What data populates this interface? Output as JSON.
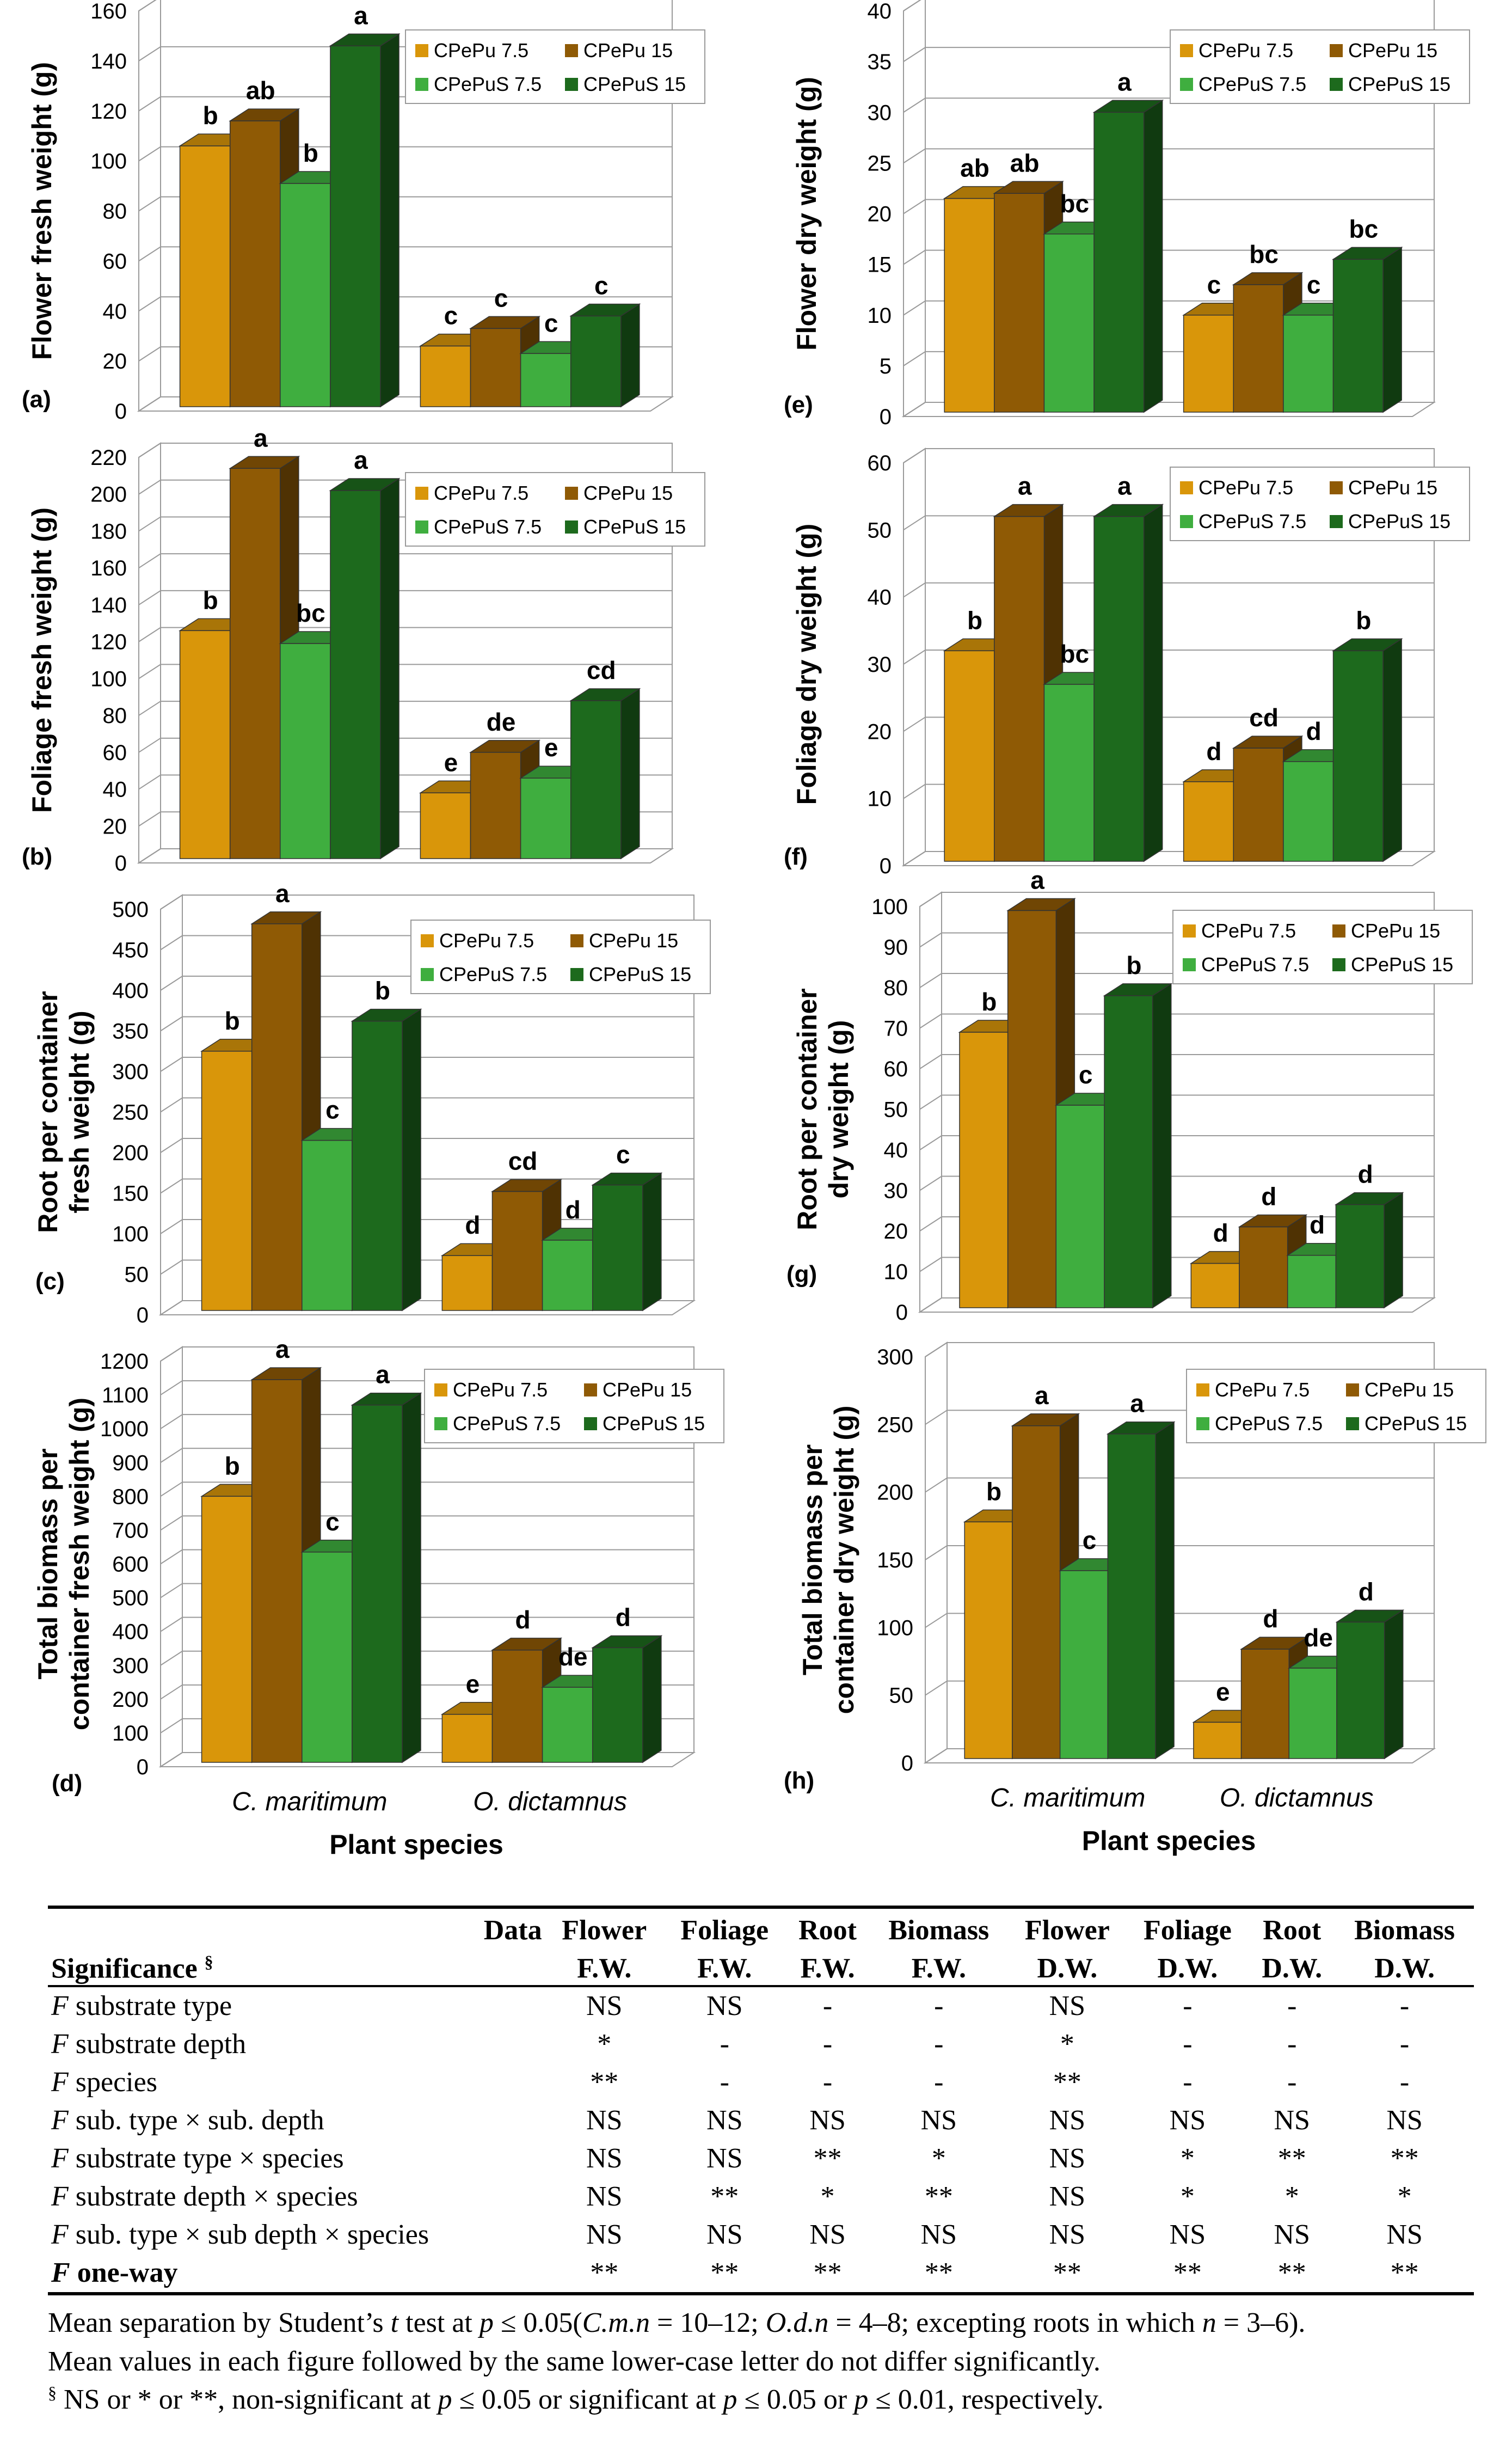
{
  "legend_colors": {
    "CPePu 7.5": "#d9960a",
    "CPePu 15": "#8f5a05",
    "CPePuS 7.5": "#3fae3f",
    "CPePuS 15": "#1d6a1d"
  },
  "charts": {
    "common": {
      "series": [
        "CPePu 7.5",
        "CPePu 15",
        "CPePuS 7.5",
        "CPePuS 15"
      ],
      "categories": [
        "C. maritimum",
        "O. dictamnus"
      ],
      "xlabel": "Plant species"
    }
  },
  "chart_data": [
    {
      "id": "a",
      "type": "bar",
      "panel": "(a)",
      "ylabel": "Flower fresh weight (g)",
      "ylim": [
        0,
        160
      ],
      "ystep": 20,
      "categories": [
        "C. maritimum",
        "O. dictamnus"
      ],
      "series": [
        {
          "name": "CPePu 7.5",
          "values": [
            106,
            26
          ],
          "labels": [
            "b",
            "c"
          ]
        },
        {
          "name": "CPePu 15",
          "values": [
            116,
            33
          ],
          "labels": [
            "ab",
            "c"
          ]
        },
        {
          "name": "CPePuS 7.5",
          "values": [
            91,
            23
          ],
          "labels": [
            "b",
            "c"
          ]
        },
        {
          "name": "CPePuS 15",
          "values": [
            146,
            38
          ],
          "labels": [
            "a",
            "c"
          ]
        }
      ]
    },
    {
      "id": "e",
      "type": "bar",
      "panel": "(e)",
      "ylabel": "Flower dry weight (g)",
      "ylim": [
        0,
        40
      ],
      "ystep": 5,
      "categories": [
        "C. maritimum",
        "O. dictamnus"
      ],
      "series": [
        {
          "name": "CPePu 7.5",
          "values": [
            21.5,
            10
          ],
          "labels": [
            "ab",
            "c"
          ]
        },
        {
          "name": "CPePu 15",
          "values": [
            22,
            13
          ],
          "labels": [
            "ab",
            "bc"
          ]
        },
        {
          "name": "CPePuS 7.5",
          "values": [
            18,
            10
          ],
          "labels": [
            "bc",
            "c"
          ]
        },
        {
          "name": "CPePuS 15",
          "values": [
            30,
            15.5
          ],
          "labels": [
            "a",
            "bc"
          ]
        }
      ]
    },
    {
      "id": "b",
      "type": "bar",
      "panel": "(b)",
      "ylabel": "Foliage fresh weight (g)",
      "ylim": [
        0,
        220
      ],
      "ystep": 20,
      "categories": [
        "C. maritimum",
        "O. dictamnus"
      ],
      "series": [
        {
          "name": "CPePu 7.5",
          "values": [
            126,
            38
          ],
          "labels": [
            "b",
            "e"
          ]
        },
        {
          "name": "CPePu 15",
          "values": [
            214,
            60
          ],
          "labels": [
            "a",
            "de"
          ]
        },
        {
          "name": "CPePuS 7.5",
          "values": [
            119,
            46
          ],
          "labels": [
            "bc",
            "e"
          ]
        },
        {
          "name": "CPePuS 15",
          "values": [
            202,
            88
          ],
          "labels": [
            "a",
            "cd"
          ]
        }
      ]
    },
    {
      "id": "f",
      "type": "bar",
      "panel": "(f)",
      "ylabel": "Foliage dry weight (g)",
      "ylim": [
        0,
        60
      ],
      "ystep": 10,
      "categories": [
        "C. maritimum",
        "O. dictamnus"
      ],
      "series": [
        {
          "name": "CPePu 7.5",
          "values": [
            32,
            12.5
          ],
          "labels": [
            "b",
            "d"
          ]
        },
        {
          "name": "CPePu 15",
          "values": [
            52,
            17.5
          ],
          "labels": [
            "a",
            "cd"
          ]
        },
        {
          "name": "CPePuS 7.5",
          "values": [
            27,
            15.5
          ],
          "labels": [
            "bc",
            "d"
          ]
        },
        {
          "name": "CPePuS 15",
          "values": [
            52,
            32
          ],
          "labels": [
            "a",
            "b"
          ]
        }
      ]
    },
    {
      "id": "c",
      "type": "bar",
      "panel": "(c)",
      "ylabel": "Root per container fresh weight (g)",
      "ylim": [
        0,
        500
      ],
      "ystep": 50,
      "categories": [
        "C. maritimum",
        "O. dictamnus"
      ],
      "series": [
        {
          "name": "CPePu 7.5",
          "values": [
            325,
            73
          ],
          "labels": [
            "b",
            "d"
          ]
        },
        {
          "name": "CPePu 15",
          "values": [
            482,
            152
          ],
          "labels": [
            "a",
            "cd"
          ]
        },
        {
          "name": "CPePuS 7.5",
          "values": [
            215,
            92
          ],
          "labels": [
            "c",
            "d"
          ]
        },
        {
          "name": "CPePuS 15",
          "values": [
            362,
            160
          ],
          "labels": [
            "b",
            "c"
          ]
        }
      ]
    },
    {
      "id": "g",
      "type": "bar",
      "panel": "(g)",
      "ylabel": "Root per container dry weight (g)",
      "ylim": [
        0,
        100
      ],
      "ystep": 10,
      "categories": [
        "C. maritimum",
        "O. dictamnus"
      ],
      "series": [
        {
          "name": "CPePu 7.5",
          "values": [
            69,
            12
          ],
          "labels": [
            "b",
            "d"
          ]
        },
        {
          "name": "CPePu 15",
          "values": [
            99,
            21
          ],
          "labels": [
            "a",
            "d"
          ]
        },
        {
          "name": "CPePuS 7.5",
          "values": [
            51,
            14
          ],
          "labels": [
            "c",
            "d"
          ]
        },
        {
          "name": "CPePuS 15",
          "values": [
            78,
            26.5
          ],
          "labels": [
            "b",
            "d"
          ]
        }
      ]
    },
    {
      "id": "d",
      "type": "bar",
      "panel": "(d)",
      "ylabel": "Total biomass per container fresh weight (g)",
      "ylim": [
        0,
        1200
      ],
      "ystep": 100,
      "categories": [
        "C. maritimum",
        "O. dictamnus"
      ],
      "series": [
        {
          "name": "CPePu 7.5",
          "values": [
            800,
            155
          ],
          "labels": [
            "b",
            "e"
          ]
        },
        {
          "name": "CPePu 15",
          "values": [
            1145,
            345
          ],
          "labels": [
            "a",
            "d"
          ]
        },
        {
          "name": "CPePuS 7.5",
          "values": [
            635,
            235
          ],
          "labels": [
            "c",
            "de"
          ]
        },
        {
          "name": "CPePuS 15",
          "values": [
            1070,
            352
          ],
          "labels": [
            "a",
            "d"
          ]
        }
      ]
    },
    {
      "id": "h",
      "type": "bar",
      "panel": "(h)",
      "ylabel": "Total biomass per container dry weight (g)",
      "ylim": [
        0,
        300
      ],
      "ystep": 50,
      "categories": [
        "C. maritimum",
        "O. dictamnus"
      ],
      "series": [
        {
          "name": "CPePu 7.5",
          "values": [
            178,
            30
          ],
          "labels": [
            "b",
            "e"
          ]
        },
        {
          "name": "CPePu 15",
          "values": [
            249,
            84
          ],
          "labels": [
            "a",
            "d"
          ]
        },
        {
          "name": "CPePuS 7.5",
          "values": [
            142,
            70
          ],
          "labels": [
            "c",
            "de"
          ]
        },
        {
          "name": "CPePuS 15",
          "values": [
            243,
            104
          ],
          "labels": [
            "a",
            "d"
          ]
        }
      ]
    }
  ],
  "table": {
    "header_data": "Data",
    "header_sig": "Significance",
    "header_sig_sup": "§",
    "columns": [
      [
        "Flower",
        "F.W."
      ],
      [
        "Foliage",
        "F.W."
      ],
      [
        "Root",
        "F.W."
      ],
      [
        "Biomass",
        "F.W."
      ],
      [
        "Flower",
        "D.W."
      ],
      [
        "Foliage",
        "D.W."
      ],
      [
        "Root",
        "D.W."
      ],
      [
        "Biomass",
        "D.W."
      ]
    ],
    "rows": [
      {
        "f": "F",
        "label": " substrate type",
        "bold": false,
        "cells": [
          "NS",
          "NS",
          "-",
          "-",
          "NS",
          "-",
          "-",
          "-"
        ]
      },
      {
        "f": "F",
        "label": " substrate depth",
        "bold": false,
        "cells": [
          "*",
          "-",
          "-",
          "-",
          "*",
          "-",
          "-",
          "-"
        ]
      },
      {
        "f": "F",
        "label": " species",
        "bold": false,
        "cells": [
          "**",
          "-",
          "-",
          "-",
          "**",
          "-",
          "-",
          "-"
        ]
      },
      {
        "f": "F",
        "label": " sub. type × sub. depth",
        "bold": false,
        "cells": [
          "NS",
          "NS",
          "NS",
          "NS",
          "NS",
          "NS",
          "NS",
          "NS"
        ]
      },
      {
        "f": "F",
        "label": " substrate type × species",
        "bold": false,
        "cells": [
          "NS",
          "NS",
          "**",
          "*",
          "NS",
          "*",
          "**",
          "**"
        ]
      },
      {
        "f": "F",
        "label": " substrate depth × species",
        "bold": false,
        "cells": [
          "NS",
          "**",
          "*",
          "**",
          "NS",
          "*",
          "*",
          "*"
        ]
      },
      {
        "f": "F",
        "label": " sub. type × sub depth × species",
        "bold": false,
        "cells": [
          "NS",
          "NS",
          "NS",
          "NS",
          "NS",
          "NS",
          "NS",
          "NS"
        ]
      },
      {
        "f": "F",
        "label": " one-way",
        "bold": true,
        "cells": [
          "**",
          "**",
          "**",
          "**",
          "**",
          "**",
          "**",
          "**"
        ]
      }
    ],
    "notes": {
      "n1_a": "Mean separation by Student’s ",
      "n1_t": "t",
      "n1_b": " test at ",
      "n1_p": "p",
      "n1_c": " ≤ 0.05(",
      "n1_cm": "C.m.n",
      "n1_d": " = 10–12; ",
      "n1_od": "O.d.n",
      "n1_e": " = 4–8; excepting roots in which ",
      "n1_n": "n",
      "n1_f": " = 3–6).",
      "n2": "Mean values in each figure followed by the same lower-case letter do not differ significantly.",
      "n3_sup": "§",
      "n3_a": " NS or * or **, non-significant at ",
      "n3_p1": "p",
      "n3_b": " ≤ 0.05 or significant at ",
      "n3_p2": "p",
      "n3_c": " ≤ 0.05 or ",
      "n3_p3": "p",
      "n3_d": " ≤ 0.01, respectively."
    }
  }
}
